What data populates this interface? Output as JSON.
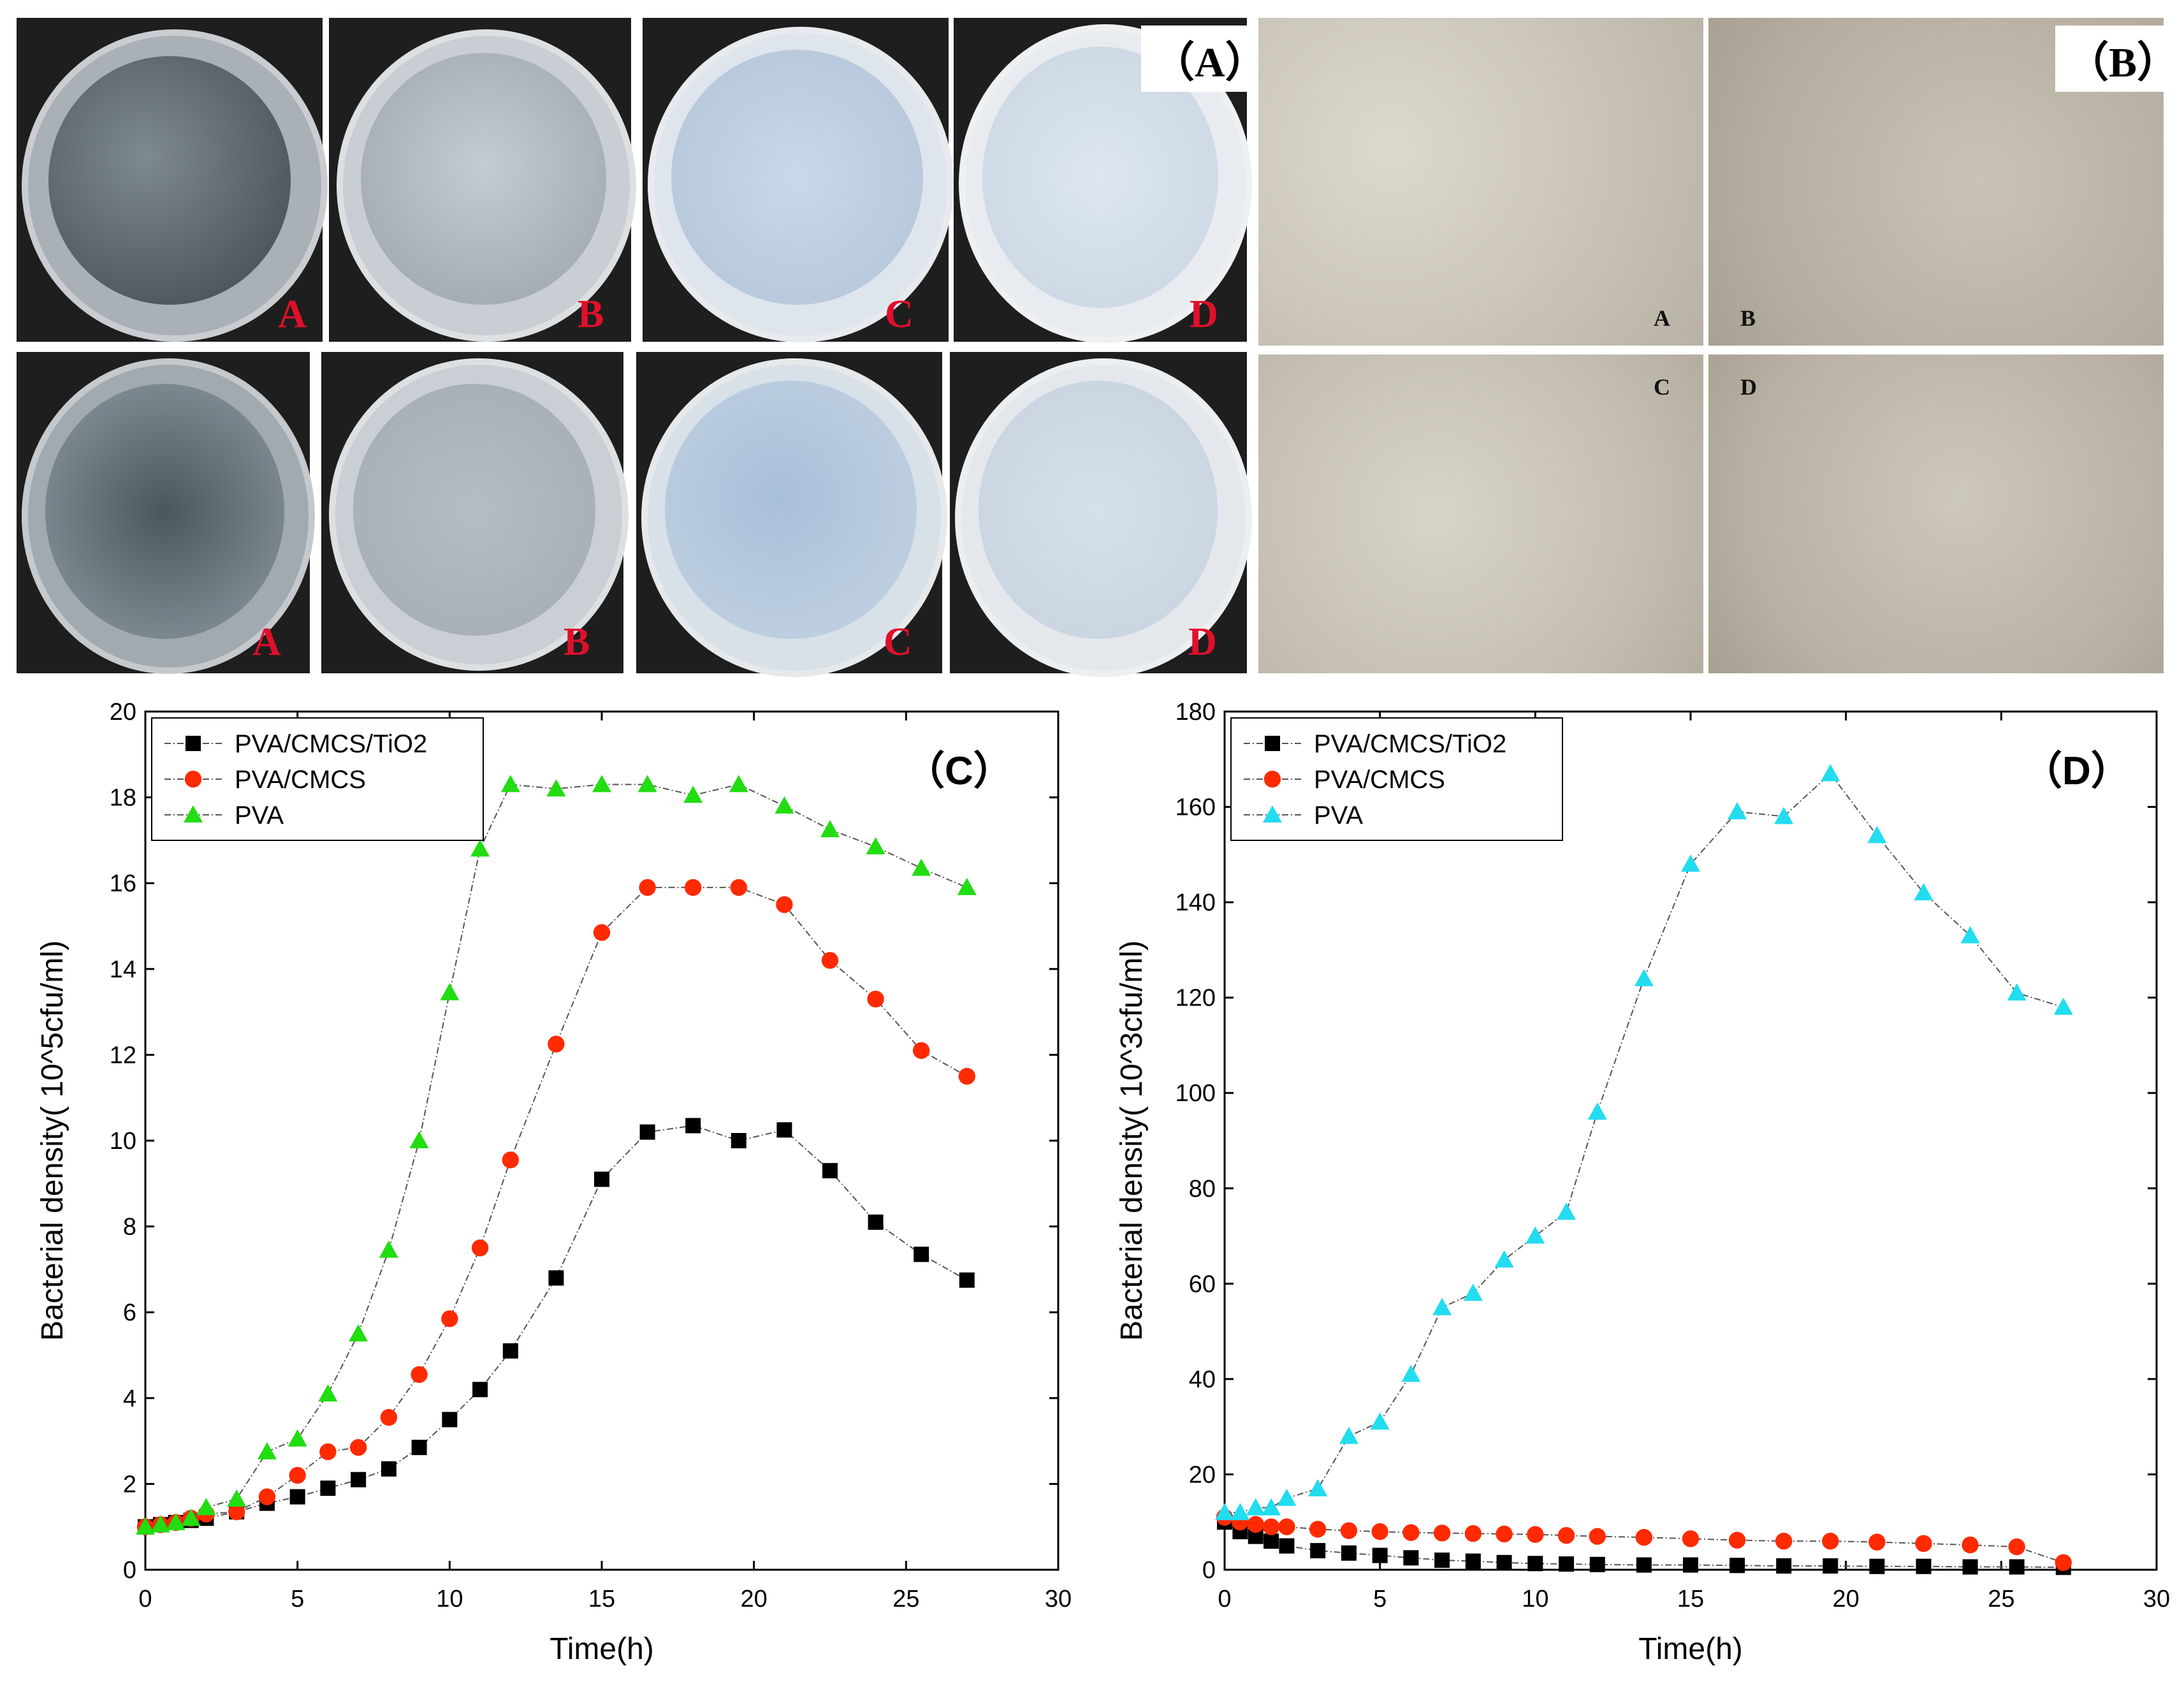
{
  "panel_a": {
    "tag": "（A）",
    "top_row": [
      "A",
      "B",
      "C",
      "D"
    ],
    "bottom_row": [
      "A",
      "B",
      "C",
      "D"
    ]
  },
  "panel_b": {
    "tag": "（B）",
    "labels": [
      "A",
      "B",
      "C",
      "D"
    ]
  },
  "colors": {
    "tio2": "#000000",
    "cmcs": "#ff2a00",
    "pva_c": "#22dd11",
    "pva_d": "#22dcf0",
    "plate_label": "#e0102a"
  },
  "chart_data": [
    {
      "type": "line",
      "panel": "（C）",
      "title": "",
      "xlabel": "Time(h)",
      "ylabel": "Bacterial density( 10^5cfu/ml)",
      "xlim": [
        0,
        30
      ],
      "ylim": [
        0,
        20
      ],
      "xticks": [
        0,
        5,
        10,
        15,
        20,
        25,
        30
      ],
      "yticks": [
        0,
        2,
        4,
        6,
        8,
        10,
        12,
        14,
        16,
        18,
        20
      ],
      "legend_position": "top-left",
      "series": [
        {
          "name": "PVA/CMCS/TiO2",
          "marker": "square",
          "x": [
            0,
            0.5,
            1,
            1.5,
            2,
            3,
            4,
            5,
            6,
            7,
            8,
            9,
            10,
            11,
            12,
            13.5,
            15,
            16.5,
            18,
            19.5,
            21,
            22.5,
            24,
            25.5,
            27
          ],
          "y": [
            1.0,
            1.05,
            1.1,
            1.15,
            1.2,
            1.35,
            1.55,
            1.7,
            1.9,
            2.1,
            2.35,
            2.85,
            3.5,
            4.2,
            5.1,
            6.8,
            9.1,
            10.2,
            10.35,
            10.0,
            10.25,
            9.3,
            8.1,
            7.35,
            6.75
          ]
        },
        {
          "name": "PVA/CMCS",
          "marker": "circle",
          "x": [
            0,
            0.5,
            1,
            1.5,
            2,
            3,
            4,
            5,
            6,
            7,
            8,
            9,
            10,
            11,
            12,
            13.5,
            15,
            16.5,
            18,
            19.5,
            21,
            22.5,
            24,
            25.5,
            27
          ],
          "y": [
            1.0,
            1.05,
            1.1,
            1.2,
            1.3,
            1.35,
            1.7,
            2.2,
            2.75,
            2.85,
            3.55,
            4.55,
            5.85,
            7.5,
            9.55,
            12.25,
            14.85,
            15.9,
            15.9,
            15.9,
            15.5,
            14.2,
            13.3,
            12.1,
            11.5
          ]
        },
        {
          "name": "PVA",
          "marker": "triangle",
          "x": [
            0,
            0.5,
            1,
            1.5,
            2,
            3,
            4,
            5,
            6,
            7,
            8,
            9,
            10,
            11,
            12,
            13.5,
            15,
            16.5,
            18,
            19.5,
            21,
            22.5,
            24,
            25.5,
            27
          ],
          "y": [
            1.0,
            1.05,
            1.1,
            1.2,
            1.45,
            1.65,
            2.75,
            3.05,
            4.1,
            5.5,
            7.45,
            10.0,
            13.45,
            16.8,
            18.3,
            18.2,
            18.3,
            18.3,
            18.05,
            18.3,
            17.8,
            17.25,
            16.85,
            16.35,
            15.9
          ]
        }
      ]
    },
    {
      "type": "line",
      "panel": "（D）",
      "title": "",
      "xlabel": "Time(h)",
      "ylabel": "Bacterial density( 10^3cfu/ml)",
      "xlim": [
        0,
        30
      ],
      "ylim": [
        0,
        180
      ],
      "xticks": [
        0,
        5,
        10,
        15,
        20,
        25,
        30
      ],
      "yticks": [
        0,
        20,
        40,
        60,
        80,
        100,
        120,
        140,
        160,
        180
      ],
      "legend_position": "top-left",
      "series": [
        {
          "name": "PVA/CMCS/TiO2",
          "marker": "square",
          "x": [
            0,
            0.5,
            1,
            1.5,
            2,
            3,
            4,
            5,
            6,
            7,
            8,
            9,
            10,
            11,
            12,
            13.5,
            15,
            16.5,
            18,
            19.5,
            21,
            22.5,
            24,
            25.5,
            27
          ],
          "y": [
            10,
            8,
            7,
            6,
            5,
            4,
            3.5,
            3,
            2.5,
            2,
            1.8,
            1.5,
            1.3,
            1.2,
            1.1,
            1,
            1,
            0.9,
            0.8,
            0.8,
            0.7,
            0.7,
            0.6,
            0.6,
            0.5
          ]
        },
        {
          "name": "PVA/CMCS",
          "marker": "circle",
          "x": [
            0,
            0.5,
            1,
            1.5,
            2,
            3,
            4,
            5,
            6,
            7,
            8,
            9,
            10,
            11,
            12,
            13.5,
            15,
            16.5,
            18,
            19.5,
            21,
            22.5,
            24,
            25.5,
            27
          ],
          "y": [
            11,
            10,
            9.5,
            9,
            9,
            8.5,
            8.2,
            8,
            7.8,
            7.7,
            7.6,
            7.5,
            7.4,
            7.2,
            7,
            6.8,
            6.5,
            6.2,
            6,
            6,
            5.8,
            5.5,
            5.2,
            4.8,
            1.5
          ]
        },
        {
          "name": "PVA",
          "marker": "triangle",
          "x": [
            0,
            0.5,
            1,
            1.5,
            2,
            3,
            4,
            5,
            6,
            7,
            8,
            9,
            10,
            11,
            12,
            13.5,
            15,
            16.5,
            18,
            19.5,
            21,
            22.5,
            24,
            25.5,
            27
          ],
          "y": [
            12,
            12,
            13,
            13,
            15,
            17,
            28,
            31,
            41,
            55,
            58,
            65,
            70,
            75,
            96,
            124,
            148,
            159,
            158,
            167,
            154,
            142,
            133,
            121,
            118
          ]
        }
      ]
    }
  ]
}
